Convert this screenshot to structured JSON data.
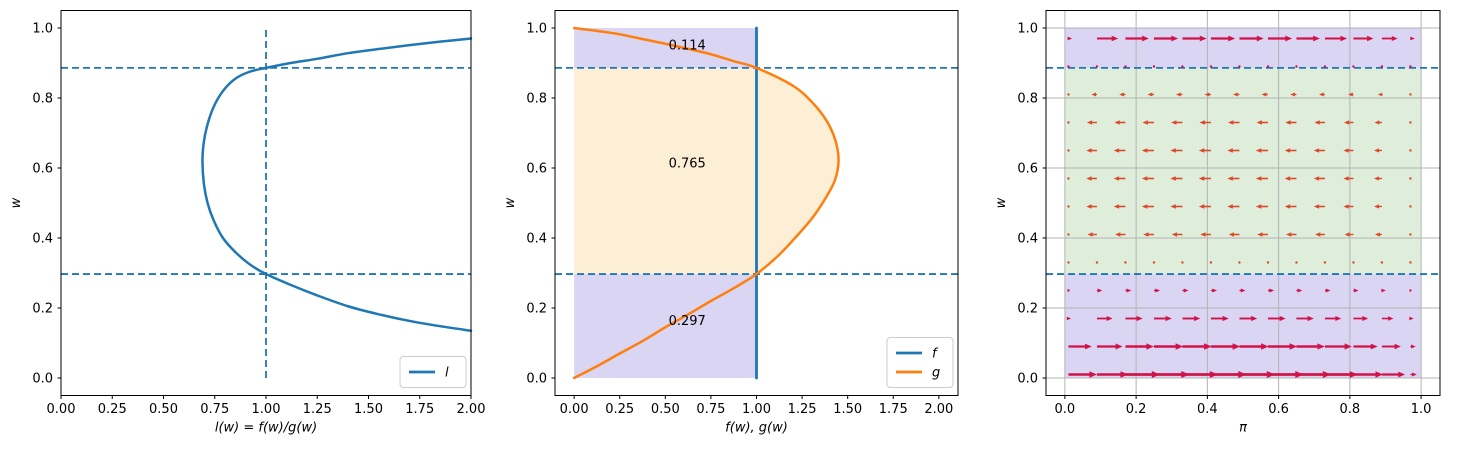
{
  "colors": {
    "axis": "#000000",
    "text": "#000000",
    "grid": "#b3b3b3",
    "blue": "#1f77b4",
    "orange": "#ff7f0e",
    "purple_fill": "#d9d5f3",
    "green_fill": "#dfeedb",
    "orange_fill": "#fdeed6",
    "arrow_right": "#d2134a",
    "arrow_left": "#dc4a2b",
    "legend_border": "#cccccc"
  },
  "chart_data": [
    {
      "id": "likelihood-ratio",
      "type": "line",
      "title": "",
      "xlabel": "l(w) = f(w)/g(w)",
      "ylabel": "w",
      "xlim": [
        0,
        2
      ],
      "ylim": [
        -0.05,
        1.05
      ],
      "xtick_vals": [
        0,
        0.25,
        0.5,
        0.75,
        1.0,
        1.25,
        1.5,
        1.75,
        2.0
      ],
      "xtick_labels": [
        "0.00",
        "0.25",
        "0.50",
        "0.75",
        "1.00",
        "1.25",
        "1.50",
        "1.75",
        "2.00"
      ],
      "ytick_vals": [
        0,
        0.2,
        0.4,
        0.6,
        0.8,
        1.0
      ],
      "ytick_labels": [
        "0.0",
        "0.2",
        "0.4",
        "0.6",
        "0.8",
        "1.0"
      ],
      "grid": false,
      "hlines_dashed": [
        0.886,
        0.297
      ],
      "vlines_dashed": [
        {
          "x": 1.0,
          "y0": 0.0,
          "y1": 1.0
        }
      ],
      "series": [
        {
          "name": "l",
          "color": "#1f77b4",
          "width": 2.5,
          "points": [
            [
              2.0,
              0.135
            ],
            [
              1.85,
              0.148
            ],
            [
              1.7,
              0.163
            ],
            [
              1.55,
              0.182
            ],
            [
              1.4,
              0.205
            ],
            [
              1.25,
              0.236
            ],
            [
              1.12,
              0.266
            ],
            [
              1.0,
              0.297
            ],
            [
              0.92,
              0.325
            ],
            [
              0.85,
              0.36
            ],
            [
              0.79,
              0.4
            ],
            [
              0.745,
              0.45
            ],
            [
              0.715,
              0.5
            ],
            [
              0.697,
              0.555
            ],
            [
              0.69,
              0.62
            ],
            [
              0.697,
              0.675
            ],
            [
              0.715,
              0.725
            ],
            [
              0.745,
              0.775
            ],
            [
              0.79,
              0.82
            ],
            [
              0.85,
              0.855
            ],
            [
              0.92,
              0.875
            ],
            [
              1.0,
              0.886
            ],
            [
              1.12,
              0.9
            ],
            [
              1.25,
              0.912
            ],
            [
              1.4,
              0.928
            ],
            [
              1.55,
              0.94
            ],
            [
              1.7,
              0.951
            ],
            [
              1.85,
              0.961
            ],
            [
              2.0,
              0.97
            ]
          ]
        }
      ],
      "legend": {
        "loc": "lower right",
        "entries": [
          {
            "label": "l",
            "color": "#1f77b4"
          }
        ]
      },
      "annotations": []
    },
    {
      "id": "densities",
      "type": "line",
      "title": "",
      "xlabel": "f(w), g(w)",
      "ylabel": "w",
      "xlim": [
        -0.105,
        2.105
      ],
      "ylim": [
        -0.05,
        1.05
      ],
      "xtick_vals": [
        0,
        0.25,
        0.5,
        0.75,
        1.0,
        1.25,
        1.5,
        1.75,
        2.0
      ],
      "xtick_labels": [
        "0.00",
        "0.25",
        "0.50",
        "0.75",
        "1.00",
        "1.25",
        "1.50",
        "1.75",
        "2.00"
      ],
      "ytick_vals": [
        0,
        0.2,
        0.4,
        0.6,
        0.8,
        1.0
      ],
      "ytick_labels": [
        "0.0",
        "0.2",
        "0.4",
        "0.6",
        "0.8",
        "1.0"
      ],
      "grid": false,
      "hlines_dashed": [
        0.886,
        0.297
      ],
      "vlines_dashed": [],
      "rect_fills": [
        {
          "name": "area-f-below",
          "x0": 0,
          "x1": 1,
          "y0": 0,
          "y1": 0.297,
          "color": "#d9d5f3"
        },
        {
          "name": "area-f-above",
          "x0": 0,
          "x1": 1,
          "y0": 0.886,
          "y1": 1.0,
          "color": "#d9d5f3"
        }
      ],
      "curve_fill": {
        "name": "area-g-middle",
        "series": "g",
        "w_from": 0.297,
        "w_to": 0.886,
        "left_x": 0,
        "color": "#fdeed6"
      },
      "series": [
        {
          "name": "f",
          "color": "#1f77b4",
          "width": 2.8,
          "points": [
            [
              1,
              0
            ],
            [
              1,
              1
            ]
          ]
        },
        {
          "name": "g",
          "color": "#ff7f0e",
          "width": 2.5,
          "points": [
            [
              0,
              0
            ],
            [
              0.13,
              0.035
            ],
            [
              0.25,
              0.07
            ],
            [
              0.38,
              0.107
            ],
            [
              0.5,
              0.145
            ],
            [
              0.63,
              0.183
            ],
            [
              0.75,
              0.22
            ],
            [
              0.88,
              0.258
            ],
            [
              1.0,
              0.297
            ],
            [
              1.12,
              0.35
            ],
            [
              1.22,
              0.405
            ],
            [
              1.31,
              0.46
            ],
            [
              1.38,
              0.515
            ],
            [
              1.43,
              0.565
            ],
            [
              1.45,
              0.62
            ],
            [
              1.435,
              0.675
            ],
            [
              1.39,
              0.73
            ],
            [
              1.31,
              0.785
            ],
            [
              1.2,
              0.835
            ],
            [
              1.0,
              0.886
            ],
            [
              0.87,
              0.906
            ],
            [
              0.75,
              0.925
            ],
            [
              0.62,
              0.941
            ],
            [
              0.5,
              0.955
            ],
            [
              0.37,
              0.969
            ],
            [
              0.25,
              0.982
            ],
            [
              0.12,
              0.992
            ],
            [
              0,
              1.0
            ]
          ]
        }
      ],
      "legend": {
        "loc": "lower right",
        "entries": [
          {
            "label": "f",
            "color": "#1f77b4"
          },
          {
            "label": "g",
            "color": "#ff7f0e"
          }
        ]
      },
      "annotations": [
        {
          "text": "0.114",
          "x": 0.62,
          "y": 0.952
        },
        {
          "text": "0.765",
          "x": 0.62,
          "y": 0.615
        },
        {
          "text": "0.297",
          "x": 0.62,
          "y": 0.165
        }
      ]
    },
    {
      "id": "vector-field",
      "type": "quiver",
      "title": "",
      "xlabel": "π",
      "ylabel": "w",
      "xlim": [
        -0.053,
        1.053
      ],
      "ylim": [
        -0.05,
        1.05
      ],
      "xtick_vals": [
        0,
        0.2,
        0.4,
        0.6,
        0.8,
        1.0
      ],
      "xtick_labels": [
        "0.0",
        "0.2",
        "0.4",
        "0.6",
        "0.8",
        "1.0"
      ],
      "ytick_vals": [
        0,
        0.2,
        0.4,
        0.6,
        0.8,
        1.0
      ],
      "ytick_labels": [
        "0.0",
        "0.2",
        "0.4",
        "0.6",
        "0.8",
        "1.0"
      ],
      "grid": true,
      "hlines_dashed": [
        0.886,
        0.297
      ],
      "regions": [
        {
          "name": "region-low",
          "x0": 0,
          "x1": 1,
          "y0": 0,
          "y1": 0.297,
          "color": "#d9d5f3"
        },
        {
          "name": "region-mid",
          "x0": 0,
          "x1": 1,
          "y0": 0.297,
          "y1": 0.886,
          "color": "#dfeedb"
        },
        {
          "name": "region-high",
          "x0": 0,
          "x1": 1,
          "y0": 0.886,
          "y1": 1.0,
          "color": "#d9d5f3"
        }
      ],
      "quiver": {
        "pi_values": [
          0.01,
          0.09,
          0.17,
          0.25,
          0.33,
          0.41,
          0.49,
          0.57,
          0.65,
          0.73,
          0.81,
          0.89,
          0.97
        ],
        "col_factors": [
          0.15,
          0.88,
          0.97,
          1,
          1,
          1,
          1,
          1,
          0.97,
          0.92,
          0.83,
          0.65,
          0.18
        ],
        "strong_first_col_factor": 0.8,
        "rows": [
          {
            "w": 0.01,
            "u": 0.1
          },
          {
            "w": 0.09,
            "u": 0.082
          },
          {
            "w": 0.17,
            "u": 0.05
          },
          {
            "w": 0.25,
            "u": 0.017
          },
          {
            "w": 0.33,
            "u": -0.004
          },
          {
            "w": 0.41,
            "u": -0.03
          },
          {
            "w": 0.49,
            "u": -0.034
          },
          {
            "w": 0.57,
            "u": -0.034
          },
          {
            "w": 0.65,
            "u": -0.034
          },
          {
            "w": 0.73,
            "u": -0.032
          },
          {
            "w": 0.81,
            "u": -0.018
          },
          {
            "w": 0.89,
            "u": 0.004
          },
          {
            "w": 0.97,
            "u": 0.068
          }
        ],
        "color_right": "#d2134a",
        "color_left": "#dc4a2b"
      }
    }
  ]
}
